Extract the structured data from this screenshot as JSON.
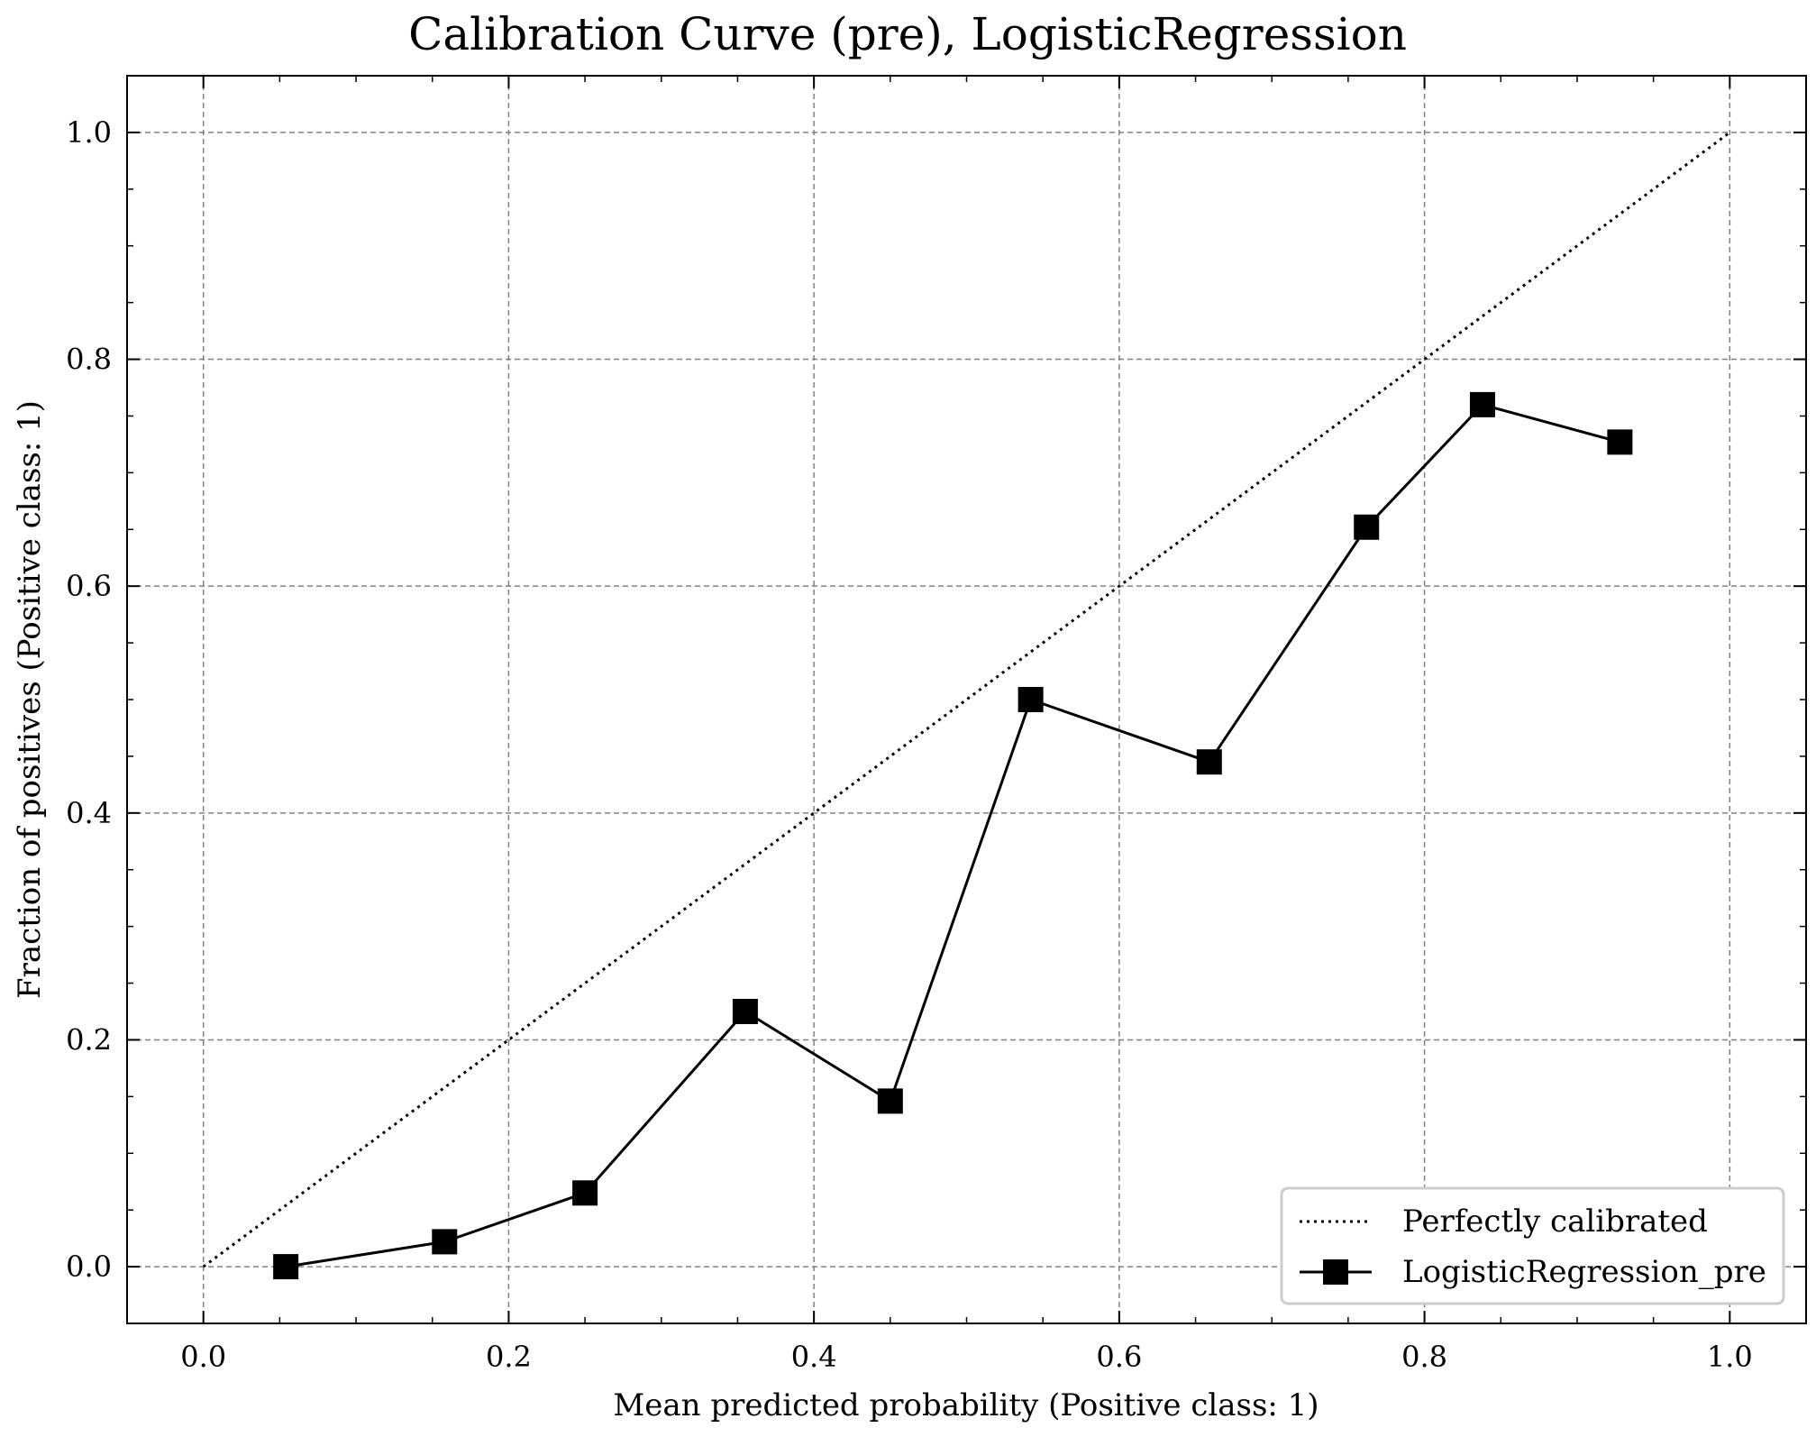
{
  "chart_data": {
    "type": "line",
    "title": "Calibration Curve (pre), LogisticRegression",
    "xlabel": "Mean predicted probability (Positive class: 1)",
    "ylabel": "Fraction of positives (Positive class: 1)",
    "xlim": [
      -0.05,
      1.05
    ],
    "ylim": [
      -0.05,
      1.05
    ],
    "xticks": [
      "0.0",
      "0.2",
      "0.4",
      "0.6",
      "0.8",
      "1.0"
    ],
    "yticks": [
      "0.0",
      "0.2",
      "0.4",
      "0.6",
      "0.8",
      "1.0"
    ],
    "grid": true,
    "legend_position": "bottom-right",
    "series": [
      {
        "name": "Perfectly calibrated",
        "style": "dotted",
        "color": "#000000",
        "x": [
          0.0,
          1.0
        ],
        "y": [
          0.0,
          1.0
        ]
      },
      {
        "name": "LogisticRegression_pre",
        "style": "solid",
        "marker": "square",
        "color": "#000000",
        "x": [
          0.054,
          0.158,
          0.25,
          0.355,
          0.45,
          0.542,
          0.659,
          0.762,
          0.838,
          0.928
        ],
        "y": [
          0.0,
          0.022,
          0.065,
          0.225,
          0.146,
          0.5,
          0.445,
          0.652,
          0.76,
          0.727
        ]
      }
    ]
  }
}
